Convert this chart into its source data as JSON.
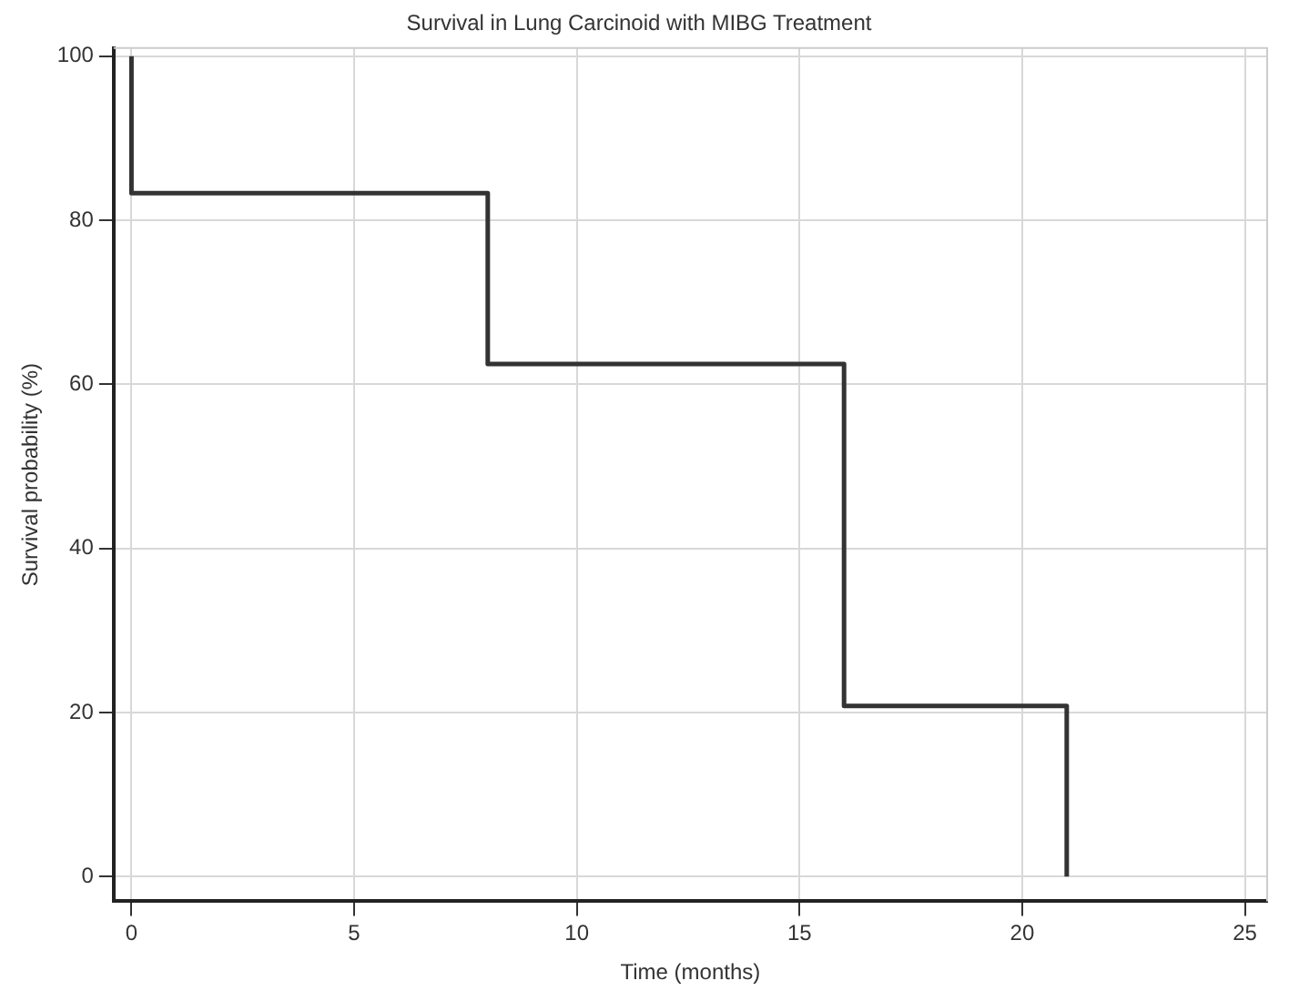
{
  "chart_data": {
    "type": "step",
    "title": "Survival in Lung Carcinoid with MIBG Treatment",
    "xlabel": "Time (months)",
    "ylabel": "Survival probability (%)",
    "x": [
      0,
      0,
      8,
      16,
      21
    ],
    "series": [
      {
        "color": "#333333",
        "values": [
          100,
          83.3,
          62.5,
          20.8,
          0
        ]
      }
    ],
    "xlim": [
      -0.4,
      25.5
    ],
    "xticks": [
      0,
      5,
      10,
      15,
      20,
      25
    ],
    "ylim": [
      -3,
      101
    ],
    "yticks": [
      0,
      20,
      40,
      60,
      80,
      100
    ],
    "grid": true,
    "legend": false,
    "marker": "none",
    "line_style": "solid"
  }
}
